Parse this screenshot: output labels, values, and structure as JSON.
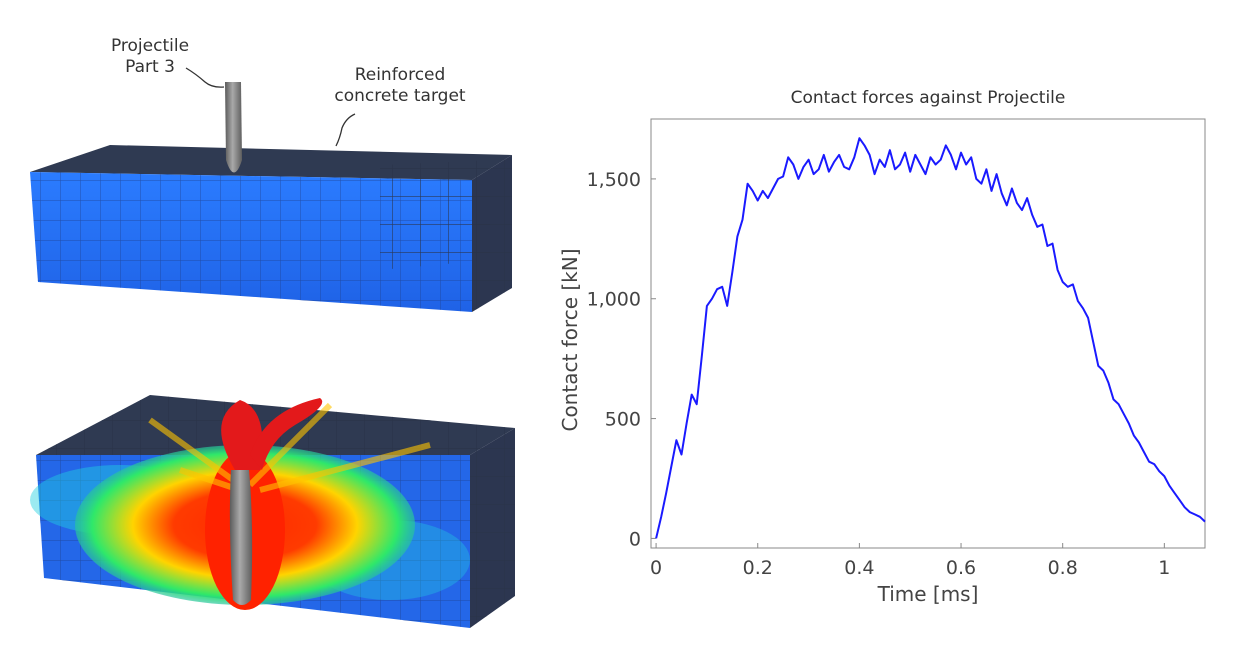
{
  "annotations": {
    "projectile": [
      "Projectile",
      "Part 3"
    ],
    "target": [
      "Reinforced",
      "concrete target"
    ]
  },
  "chart_data": {
    "type": "line",
    "title": "Contact forces against Projectile",
    "xlabel": "Time [ms]",
    "ylabel": "Contact force [kN]",
    "xlim": [
      -0.01,
      1.08
    ],
    "ylim": [
      -40,
      1750
    ],
    "xticks": [
      0,
      0.2,
      0.4,
      0.6,
      0.8,
      1
    ],
    "xtick_labels": [
      "0",
      "0.2",
      "0.4",
      "0.6",
      "0.8",
      "1"
    ],
    "yticks": [
      0,
      500,
      1000,
      1500
    ],
    "ytick_labels": [
      "0",
      "500",
      "1,000",
      "1,500"
    ],
    "grid": false,
    "legend": "none",
    "colors": {
      "line": "#1a1aff",
      "frame": "#888888"
    },
    "series": [
      {
        "x": [
          0,
          0.01,
          0.02,
          0.03,
          0.04,
          0.05,
          0.06,
          0.07,
          0.08,
          0.09,
          0.1,
          0.11,
          0.12,
          0.13,
          0.14,
          0.15,
          0.16,
          0.17,
          0.18,
          0.19,
          0.2,
          0.21,
          0.22,
          0.23,
          0.24,
          0.25,
          0.26,
          0.27,
          0.28,
          0.29,
          0.3,
          0.31,
          0.32,
          0.33,
          0.34,
          0.35,
          0.36,
          0.37,
          0.38,
          0.39,
          0.4,
          0.41,
          0.42,
          0.43,
          0.44,
          0.45,
          0.46,
          0.47,
          0.48,
          0.49,
          0.5,
          0.51,
          0.52,
          0.53,
          0.54,
          0.55,
          0.56,
          0.57,
          0.58,
          0.59,
          0.6,
          0.61,
          0.62,
          0.63,
          0.64,
          0.65,
          0.66,
          0.67,
          0.68,
          0.69,
          0.7,
          0.71,
          0.72,
          0.73,
          0.74,
          0.75,
          0.76,
          0.77,
          0.78,
          0.79,
          0.8,
          0.81,
          0.82,
          0.83,
          0.84,
          0.85,
          0.86,
          0.87,
          0.88,
          0.89,
          0.9,
          0.91,
          0.92,
          0.93,
          0.94,
          0.95,
          0.96,
          0.97,
          0.98,
          0.99,
          1.0,
          1.01,
          1.02,
          1.03,
          1.04,
          1.05,
          1.06,
          1.07,
          1.08
        ],
        "y": [
          0,
          90,
          190,
          300,
          410,
          350,
          480,
          600,
          560,
          760,
          970,
          1000,
          1040,
          1050,
          970,
          1110,
          1260,
          1330,
          1480,
          1450,
          1410,
          1450,
          1420,
          1460,
          1500,
          1510,
          1590,
          1560,
          1500,
          1550,
          1580,
          1520,
          1540,
          1600,
          1530,
          1570,
          1600,
          1550,
          1540,
          1590,
          1670,
          1640,
          1600,
          1520,
          1580,
          1550,
          1620,
          1540,
          1560,
          1610,
          1530,
          1600,
          1560,
          1520,
          1590,
          1560,
          1580,
          1640,
          1600,
          1540,
          1610,
          1560,
          1590,
          1500,
          1480,
          1540,
          1450,
          1520,
          1440,
          1390,
          1460,
          1400,
          1370,
          1420,
          1350,
          1300,
          1310,
          1220,
          1230,
          1120,
          1070,
          1050,
          1060,
          990,
          960,
          920,
          820,
          720,
          700,
          650,
          580,
          560,
          520,
          480,
          430,
          400,
          360,
          320,
          310,
          280,
          260,
          220,
          190,
          160,
          130,
          110,
          100,
          90,
          70
        ]
      }
    ]
  }
}
